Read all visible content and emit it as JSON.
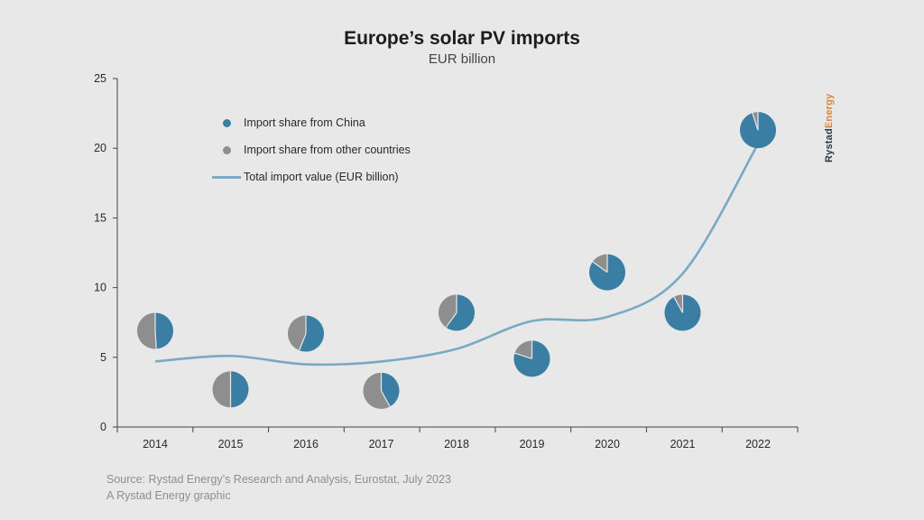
{
  "header": {
    "title": "Europe’s solar PV imports",
    "subtitle": "EUR billion"
  },
  "legend": {
    "china": "Import share from China",
    "other": "Import share from other countries",
    "total": "Total import value (EUR billion)"
  },
  "brand": {
    "part1": "Rystad",
    "part2": "Energy"
  },
  "footer": {
    "source": "Source: Rystad Energy’s Research and Analysis, Eurostat, July 2023",
    "credit": "A Rystad Energy graphic"
  },
  "colors": {
    "china": "#3a7fa3",
    "other": "#8e8e8e",
    "line": "#7aa9c3",
    "axis": "#444444",
    "brand_dark": "#2b3a4a",
    "brand_accent": "#d9873a"
  },
  "chart_data": {
    "type": "line",
    "title": "Europe’s solar PV imports",
    "subtitle": "EUR billion",
    "categories": [
      "2014",
      "2015",
      "2016",
      "2017",
      "2018",
      "2019",
      "2020",
      "2021",
      "2022"
    ],
    "ylim": [
      0,
      25
    ],
    "yticks": [
      0,
      5,
      10,
      15,
      20,
      25
    ],
    "grid": false,
    "legend_position": "top-left",
    "series": [
      {
        "name": "Total import value (EUR billion)",
        "values": [
          4.7,
          5.1,
          4.5,
          4.7,
          5.6,
          7.6,
          7.9,
          11.0,
          20.3
        ]
      }
    ],
    "pies": [
      {
        "year": "2014",
        "y": 6.9,
        "china_share": 0.49
      },
      {
        "year": "2015",
        "y": 2.7,
        "china_share": 0.5
      },
      {
        "year": "2016",
        "y": 6.7,
        "china_share": 0.56
      },
      {
        "year": "2017",
        "y": 2.6,
        "china_share": 0.42
      },
      {
        "year": "2018",
        "y": 8.2,
        "china_share": 0.6
      },
      {
        "year": "2019",
        "y": 4.9,
        "china_share": 0.8
      },
      {
        "year": "2020",
        "y": 11.1,
        "china_share": 0.85
      },
      {
        "year": "2021",
        "y": 8.2,
        "china_share": 0.92
      },
      {
        "year": "2022",
        "y": 21.3,
        "china_share": 0.95
      }
    ]
  }
}
